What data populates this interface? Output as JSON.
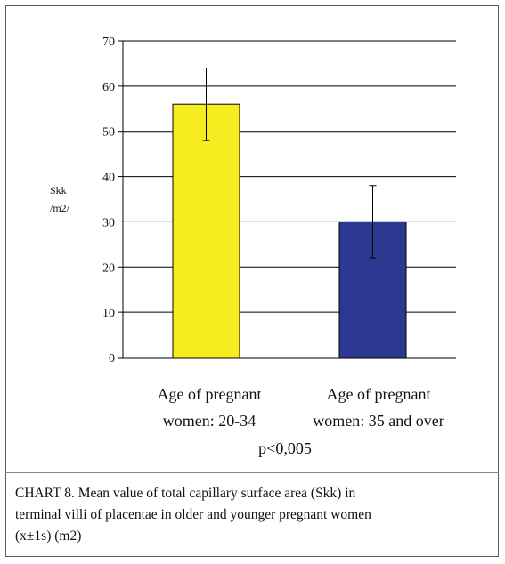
{
  "chart_data": {
    "type": "bar",
    "categories": [
      "Age of pregnant women: 20-34",
      "Age of pregnant women: 35 and over"
    ],
    "category_lines": [
      [
        "Age of pregnant",
        "women: 20-34"
      ],
      [
        "Age of pregnant",
        "women: 35 and over"
      ]
    ],
    "values": [
      56,
      30
    ],
    "error_low": [
      48,
      22
    ],
    "error_high": [
      64,
      38
    ],
    "colors": [
      "#f5ed20",
      "#2b3990"
    ],
    "ylabel_lines": [
      "Skk",
      "/m2/"
    ],
    "ylim": [
      0,
      70
    ],
    "yticks": [
      0,
      10,
      20,
      30,
      40,
      50,
      60,
      70
    ],
    "grid": true,
    "annotation": "p<0,005"
  },
  "caption": {
    "lines": [
      "CHART 8.  Mean value of total capillary surface area (Skk) in",
      "terminal villi of placentae in older and younger pregnant women",
      "(x±1s) (m2)"
    ]
  }
}
